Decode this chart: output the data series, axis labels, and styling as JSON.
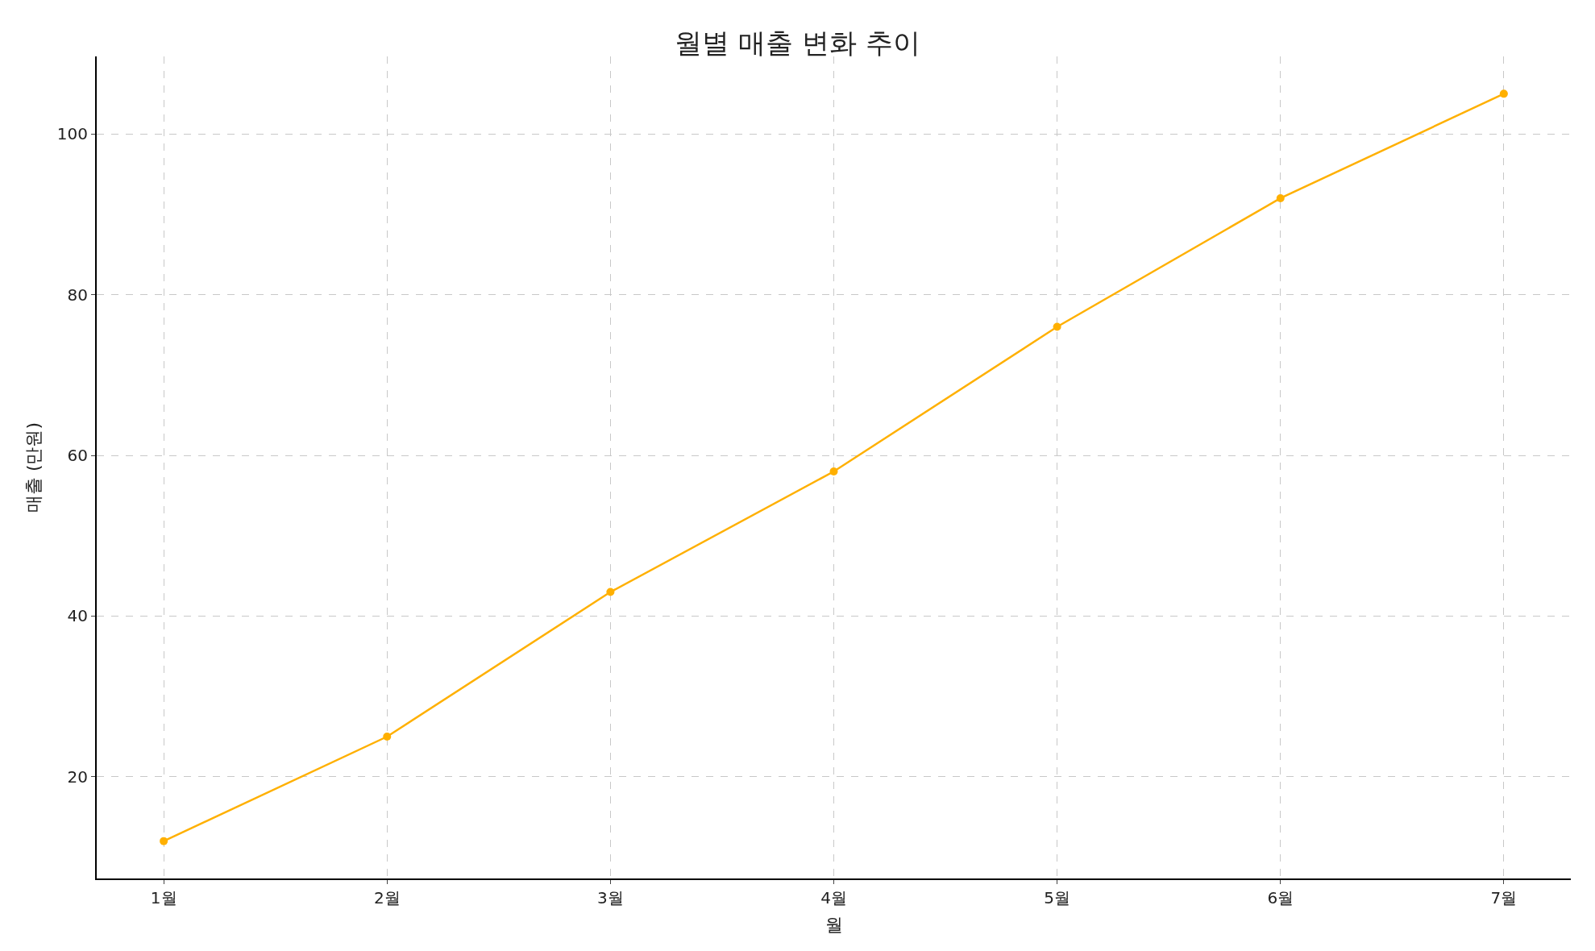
{
  "chart_data": {
    "type": "line",
    "title": "월별 매출 변화 추이",
    "xlabel": "월",
    "ylabel": "매출 (만원)",
    "categories": [
      "1월",
      "2월",
      "3월",
      "4월",
      "5월",
      "6월",
      "7월"
    ],
    "series": [
      {
        "color": "#ffb000",
        "values": [
          12,
          25,
          43,
          58,
          76,
          92,
          105
        ]
      }
    ],
    "ylim": [
      7.35,
      109.65
    ],
    "yticks": [
      20,
      40,
      60,
      80,
      100
    ],
    "grid": true,
    "marker": "circle",
    "line_style": "solid"
  }
}
